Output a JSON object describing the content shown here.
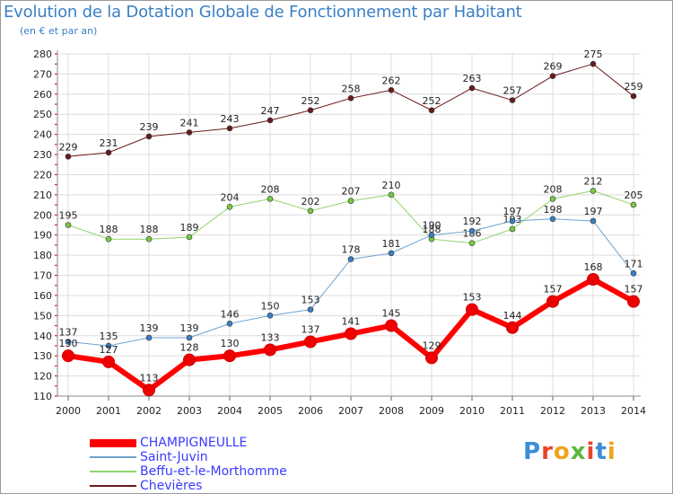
{
  "header": {
    "title": "Evolution de la Dotation Globale de Fonctionnement par Habitant",
    "subtitle": "(en € et par an)"
  },
  "logo": {
    "text": "Proxiti",
    "colors": [
      "#3a8fd8",
      "#e8432a",
      "#f2a31b",
      "#5ab83b",
      "#e8432a",
      "#3a8fd8",
      "#f2a31b"
    ]
  },
  "chart_data": {
    "type": "line",
    "x": [
      "2000",
      "2001",
      "2002",
      "2003",
      "2004",
      "2005",
      "2006",
      "2007",
      "2008",
      "2009",
      "2010",
      "2011",
      "2012",
      "2013",
      "2014"
    ],
    "ylim": [
      110,
      280
    ],
    "yticks": [
      "110",
      "120",
      "130",
      "140",
      "150",
      "160",
      "170",
      "180",
      "190",
      "200",
      "210",
      "220",
      "230",
      "240",
      "250",
      "260",
      "270",
      "280"
    ],
    "grid": true,
    "series": [
      {
        "name": "Chevières",
        "color": "#6b1a1a",
        "marker": "#6b1a1a",
        "width": 1,
        "values": [
          229,
          231,
          239,
          241,
          243,
          247,
          252,
          258,
          262,
          252,
          263,
          257,
          269,
          275,
          259
        ]
      },
      {
        "name": "Beffu-et-le-Morthomme",
        "color": "#8fd46a",
        "marker": "#7ac943",
        "width": 1,
        "values": [
          195,
          188,
          188,
          189,
          204,
          208,
          202,
          207,
          210,
          188,
          186,
          193,
          208,
          212,
          205
        ]
      },
      {
        "name": "Saint-Juvin",
        "color": "#6fa3d0",
        "marker": "#3a7fc4",
        "width": 1,
        "values": [
          137,
          135,
          139,
          139,
          146,
          150,
          153,
          178,
          181,
          190,
          192,
          197,
          198,
          197,
          171
        ]
      },
      {
        "name": "CHAMPIGNEULLE",
        "color": "#ff0000",
        "marker": "#ee0000",
        "width": 6,
        "values": [
          130,
          127,
          113,
          128,
          130,
          133,
          137,
          141,
          145,
          129,
          153,
          144,
          157,
          168,
          157
        ]
      }
    ],
    "legend_order": [
      "CHAMPIGNEULLE",
      "Saint-Juvin",
      "Beffu-et-le-Morthomme",
      "Chevières"
    ],
    "legend_placement": "bottom-left"
  }
}
